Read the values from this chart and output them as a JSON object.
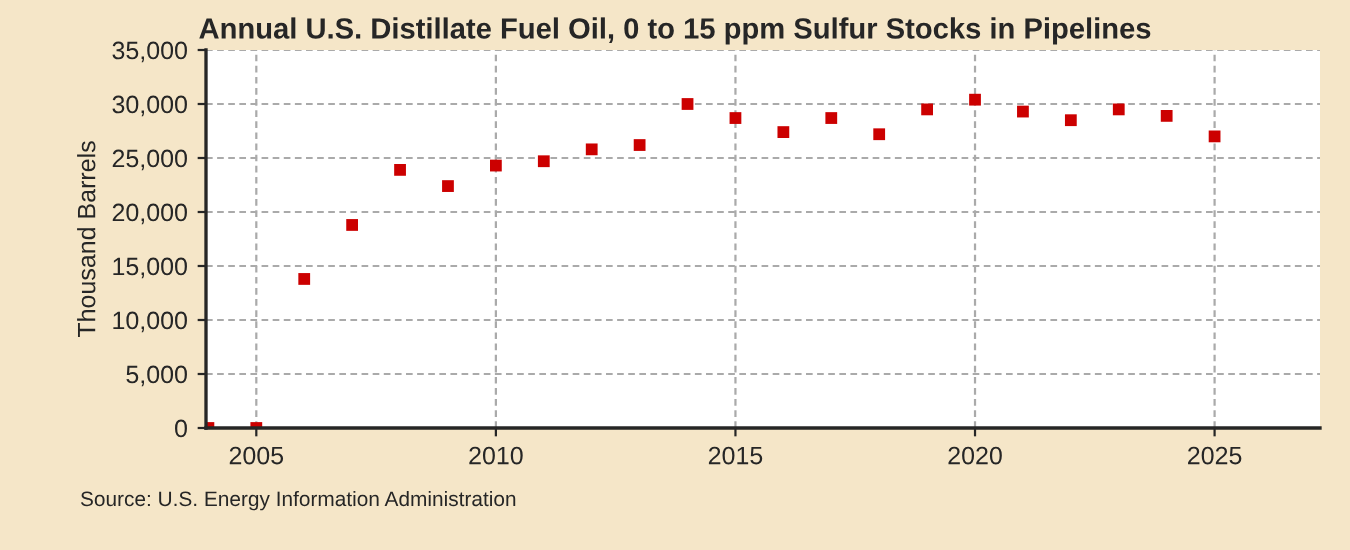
{
  "chart_data": {
    "type": "scatter",
    "title": "Annual U.S. Distillate Fuel Oil, 0 to 15 ppm Sulfur Stocks in Pipelines",
    "ylabel": "Thousand Barrels",
    "x": [
      2004,
      2005,
      2006,
      2007,
      2008,
      2009,
      2010,
      2011,
      2012,
      2013,
      2014,
      2015,
      2016,
      2017,
      2018,
      2019,
      2020,
      2021,
      2022,
      2023,
      2024,
      2025
    ],
    "series": [
      {
        "color": "#cc0000",
        "values": [
          0,
          0,
          13800,
          18800,
          23900,
          22400,
          24300,
          24700,
          25800,
          26200,
          30000,
          28700,
          27400,
          28700,
          27200,
          29500,
          30400,
          29300,
          28500,
          29500,
          28900,
          27000
        ]
      }
    ],
    "xlim": [
      2003.95,
      2027.2
    ],
    "xticks": [
      2005,
      2010,
      2015,
      2020,
      2025
    ],
    "ylim": [
      0,
      35000
    ],
    "yticks": [
      {
        "value": 0,
        "label": "0"
      },
      {
        "value": 5000,
        "label": "5,000"
      },
      {
        "value": 10000,
        "label": "10,000"
      },
      {
        "value": 15000,
        "label": "15,000"
      },
      {
        "value": 20000,
        "label": "20,000"
      },
      {
        "value": 25000,
        "label": "25,000"
      },
      {
        "value": 30000,
        "label": "30,000"
      },
      {
        "value": 35000,
        "label": "35,000"
      }
    ],
    "grid": true,
    "marker": "square",
    "annotations": [
      "Source: U.S. Energy Information Administration"
    ]
  }
}
